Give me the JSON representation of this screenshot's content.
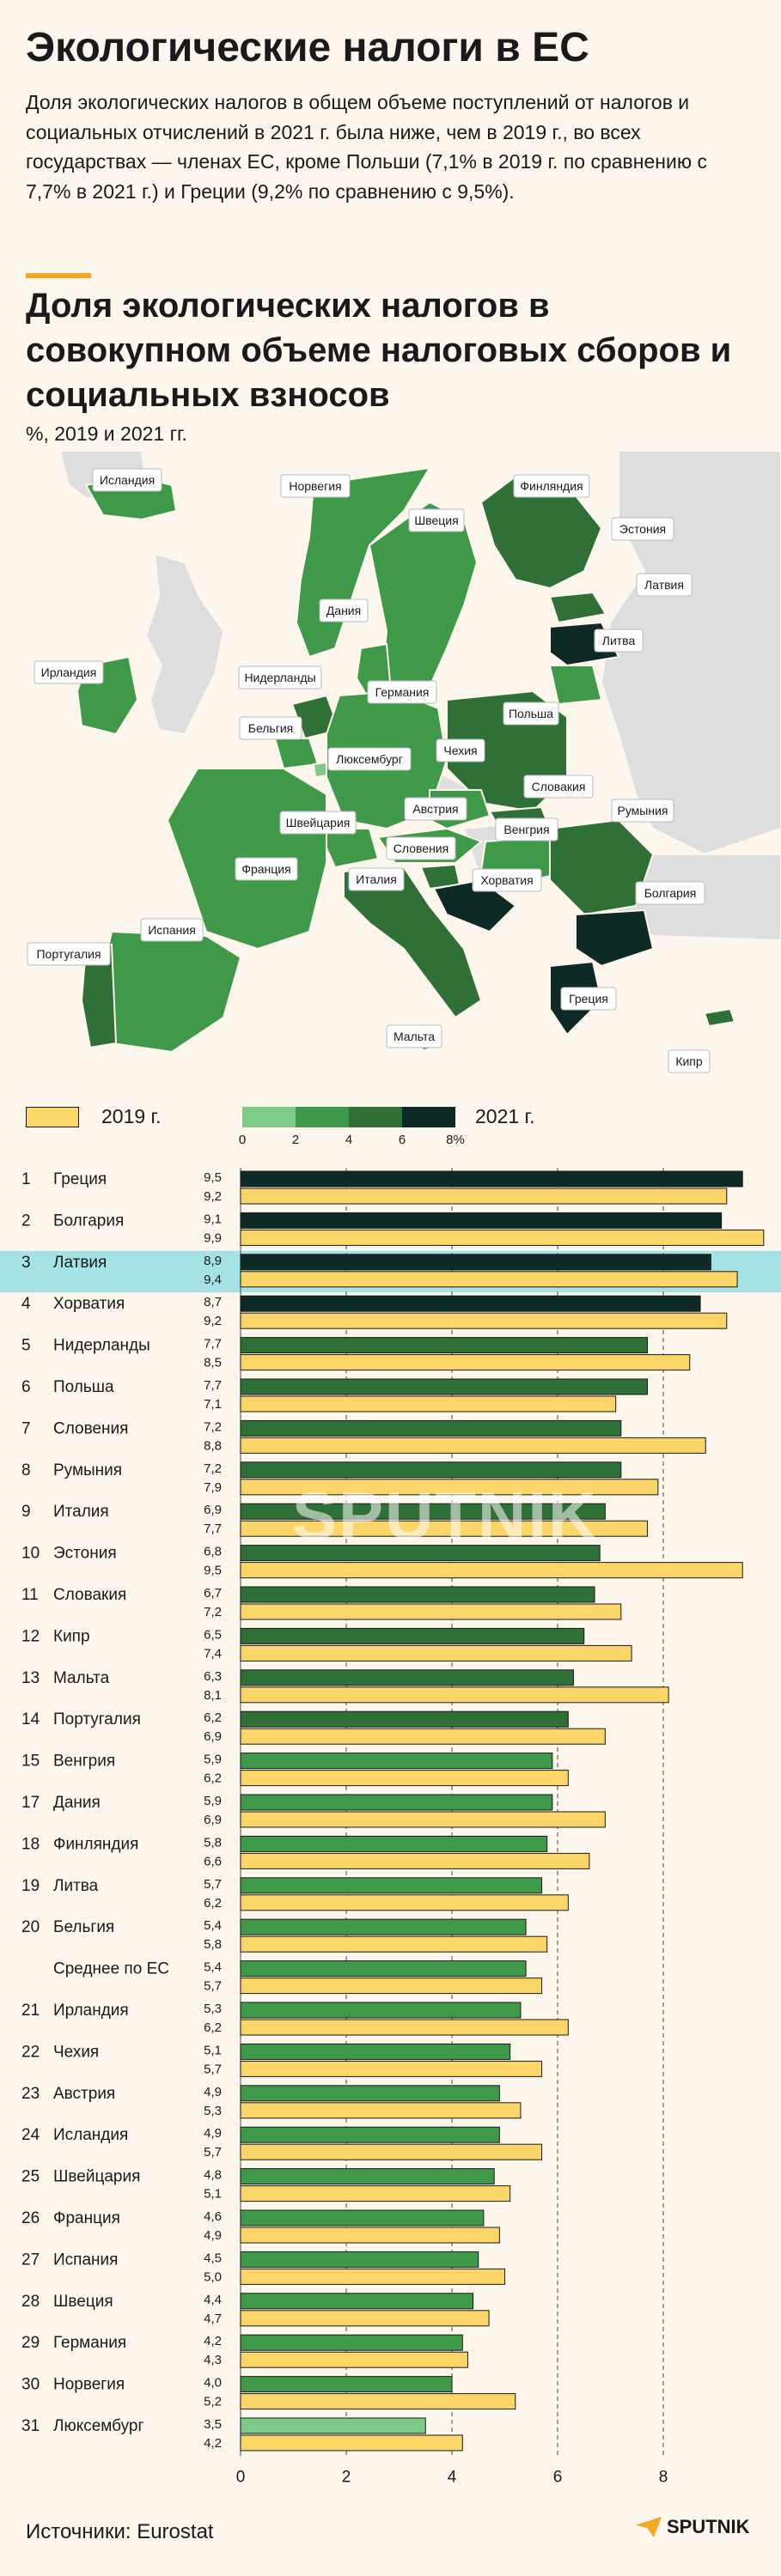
{
  "header": {
    "title": "Экологические налоги в ЕС",
    "intro": "Доля экологических налогов в общем объеме поступлений от налогов и социальных отчислений в 2021 г. была ниже, чем в 2019 г., во всех государствах — членах ЕС, кроме Польши (7,1% в 2019 г. по сравнению с 7,7% в 2021 г.) и Греции (9,2% по сравнению с 9,5%).",
    "chart_title": "Доля экологических налогов в совокупном объеме налоговых сборов и социальных взносов",
    "subtitle": "%, 2019 и 2021 гг."
  },
  "map_labels": [
    "Исландия",
    "Норвегия",
    "Финляндия",
    "Швеция",
    "Эстония",
    "Латвия",
    "Дания",
    "Литва",
    "Ирландия",
    "Нидерланды",
    "Германия",
    "Польша",
    "Бельгия",
    "Люксембург",
    "Чехия",
    "Словакия",
    "Швейцария",
    "Австрия",
    "Венгрия",
    "Румыния",
    "Франция",
    "Словения",
    "Италия",
    "Хорватия",
    "Болгария",
    "Испания",
    "Португалия",
    "Греция",
    "Мальта",
    "Кипр"
  ],
  "legend": {
    "label_2019": "2019 г.",
    "label_2021": "2021 г.",
    "scale_ticks": [
      "0",
      "2",
      "4",
      "6",
      "8%"
    ],
    "scale_colors": [
      "#7ecb87",
      "#3e9948",
      "#2e7036",
      "#0e2a26"
    ]
  },
  "colors": {
    "color_2019": "#fbd567",
    "highlight_row": "#a5e2e6",
    "grid": "#666666"
  },
  "chart_data": {
    "type": "bar",
    "xlim": [
      0,
      10
    ],
    "x_ticks": [
      0,
      2,
      4,
      6,
      8
    ],
    "highlight": "Латвия",
    "rows": [
      {
        "rank": "1",
        "name": "Греция",
        "v2021": 9.5,
        "v2019": 9.2,
        "t2021": "9,5",
        "t2019": "9,2"
      },
      {
        "rank": "2",
        "name": "Болгария",
        "v2021": 9.1,
        "v2019": 9.9,
        "t2021": "9,1",
        "t2019": "9,9"
      },
      {
        "rank": "3",
        "name": "Латвия",
        "v2021": 8.9,
        "v2019": 9.4,
        "t2021": "8,9",
        "t2019": "9,4"
      },
      {
        "rank": "4",
        "name": "Хорватия",
        "v2021": 8.7,
        "v2019": 9.2,
        "t2021": "8,7",
        "t2019": "9,2"
      },
      {
        "rank": "5",
        "name": "Нидерланды",
        "v2021": 7.7,
        "v2019": 8.5,
        "t2021": "7,7",
        "t2019": "8,5"
      },
      {
        "rank": "6",
        "name": "Польша",
        "v2021": 7.7,
        "v2019": 7.1,
        "t2021": "7,7",
        "t2019": "7,1"
      },
      {
        "rank": "7",
        "name": "Словения",
        "v2021": 7.2,
        "v2019": 8.8,
        "t2021": "7,2",
        "t2019": "8,8"
      },
      {
        "rank": "8",
        "name": "Румыния",
        "v2021": 7.2,
        "v2019": 7.9,
        "t2021": "7,2",
        "t2019": "7,9"
      },
      {
        "rank": "9",
        "name": "Италия",
        "v2021": 6.9,
        "v2019": 7.7,
        "t2021": "6,9",
        "t2019": "7,7"
      },
      {
        "rank": "10",
        "name": "Эстония",
        "v2021": 6.8,
        "v2019": 9.5,
        "t2021": "6,8",
        "t2019": "9,5"
      },
      {
        "rank": "11",
        "name": "Словакия",
        "v2021": 6.7,
        "v2019": 7.2,
        "t2021": "6,7",
        "t2019": "7,2"
      },
      {
        "rank": "12",
        "name": "Кипр",
        "v2021": 6.5,
        "v2019": 7.4,
        "t2021": "6,5",
        "t2019": "7,4"
      },
      {
        "rank": "13",
        "name": "Мальта",
        "v2021": 6.3,
        "v2019": 8.1,
        "t2021": "6,3",
        "t2019": "8,1"
      },
      {
        "rank": "14",
        "name": "Португалия",
        "v2021": 6.2,
        "v2019": 6.9,
        "t2021": "6,2",
        "t2019": "6,9"
      },
      {
        "rank": "15",
        "name": "Венгрия",
        "v2021": 5.9,
        "v2019": 6.2,
        "t2021": "5,9",
        "t2019": "6,2"
      },
      {
        "rank": "17",
        "name": "Дания",
        "v2021": 5.9,
        "v2019": 6.9,
        "t2021": "5,9",
        "t2019": "6,9"
      },
      {
        "rank": "18",
        "name": "Финляндия",
        "v2021": 5.8,
        "v2019": 6.6,
        "t2021": "5,8",
        "t2019": "6,6"
      },
      {
        "rank": "19",
        "name": "Литва",
        "v2021": 5.7,
        "v2019": 6.2,
        "t2021": "5,7",
        "t2019": "6,2"
      },
      {
        "rank": "20",
        "name": "Бельгия",
        "v2021": 5.4,
        "v2019": 5.8,
        "t2021": "5,4",
        "t2019": "5,8"
      },
      {
        "rank": "",
        "name": "Среднее по ЕС",
        "v2021": 5.4,
        "v2019": 5.7,
        "t2021": "5,4",
        "t2019": "5,7"
      },
      {
        "rank": "21",
        "name": "Ирландия",
        "v2021": 5.3,
        "v2019": 6.2,
        "t2021": "5,3",
        "t2019": "6,2"
      },
      {
        "rank": "22",
        "name": "Чехия",
        "v2021": 5.1,
        "v2019": 5.7,
        "t2021": "5,1",
        "t2019": "5,7"
      },
      {
        "rank": "23",
        "name": "Австрия",
        "v2021": 4.9,
        "v2019": 5.3,
        "t2021": "4,9",
        "t2019": "5,3"
      },
      {
        "rank": "24",
        "name": "Исландия",
        "v2021": 4.9,
        "v2019": 5.7,
        "t2021": "4,9",
        "t2019": "5,7"
      },
      {
        "rank": "25",
        "name": "Швейцария",
        "v2021": 4.8,
        "v2019": 5.1,
        "t2021": "4,8",
        "t2019": "5,1"
      },
      {
        "rank": "26",
        "name": "Франция",
        "v2021": 4.6,
        "v2019": 4.9,
        "t2021": "4,6",
        "t2019": "4,9"
      },
      {
        "rank": "27",
        "name": "Испания",
        "v2021": 4.5,
        "v2019": 5.0,
        "t2021": "4,5",
        "t2019": "5,0"
      },
      {
        "rank": "28",
        "name": "Швеция",
        "v2021": 4.4,
        "v2019": 4.7,
        "t2021": "4,4",
        "t2019": "4,7"
      },
      {
        "rank": "29",
        "name": "Германия",
        "v2021": 4.2,
        "v2019": 4.3,
        "t2021": "4,2",
        "t2019": "4,3"
      },
      {
        "rank": "30",
        "name": "Норвегия",
        "v2021": 4.0,
        "v2019": 5.2,
        "t2021": "4,0",
        "t2019": "5,2"
      },
      {
        "rank": "31",
        "name": "Люксембург",
        "v2021": 3.5,
        "v2019": 4.2,
        "t2021": "3,5",
        "t2019": "4,2"
      }
    ]
  },
  "footer": {
    "source": "Источники: Eurostat",
    "logo": "SPUTNIK",
    "watermark": "SPUTNIK"
  }
}
